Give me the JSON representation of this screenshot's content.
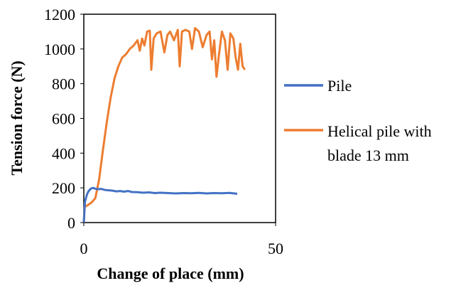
{
  "chart_data": {
    "type": "line",
    "title": "",
    "xlabel": "Change of place (mm)",
    "ylabel": "Tension force (N)",
    "xlim": [
      0,
      50
    ],
    "ylim": [
      0,
      1200
    ],
    "x_ticks": [
      "0",
      "50"
    ],
    "y_ticks": [
      "0",
      "200",
      "400",
      "600",
      "800",
      "1000",
      "1200"
    ],
    "grid": false,
    "legend_position": "right",
    "series": [
      {
        "name": "Pile",
        "color": "#4472C4",
        "points": [
          [
            0,
            0
          ],
          [
            0.3,
            120
          ],
          [
            0.8,
            160
          ],
          [
            1.2,
            180
          ],
          [
            1.8,
            195
          ],
          [
            2.4,
            200
          ],
          [
            3.0,
            195
          ],
          [
            3.6,
            192
          ],
          [
            4.5,
            194
          ],
          [
            5.5,
            188
          ],
          [
            6.5,
            186
          ],
          [
            7.5,
            184
          ],
          [
            8.5,
            180
          ],
          [
            9.5,
            182
          ],
          [
            10.5,
            178
          ],
          [
            11.5,
            182
          ],
          [
            12.5,
            176
          ],
          [
            14,
            175
          ],
          [
            15.5,
            172
          ],
          [
            17,
            174
          ],
          [
            18.5,
            170
          ],
          [
            20,
            172
          ],
          [
            22,
            170
          ],
          [
            24,
            168
          ],
          [
            26,
            170
          ],
          [
            28,
            169
          ],
          [
            30,
            171
          ],
          [
            32,
            168
          ],
          [
            34,
            170
          ],
          [
            36,
            169
          ],
          [
            38,
            171
          ],
          [
            40,
            166
          ]
        ]
      },
      {
        "name": "Helical pile with blade 13 mm",
        "color": "#ED7D31",
        "points": [
          [
            0,
            0
          ],
          [
            0.2,
            90
          ],
          [
            1.0,
            100
          ],
          [
            2.0,
            115
          ],
          [
            3.0,
            140
          ],
          [
            4.0,
            250
          ],
          [
            5.0,
            420
          ],
          [
            6.0,
            580
          ],
          [
            7.0,
            720
          ],
          [
            8.0,
            830
          ],
          [
            9.0,
            900
          ],
          [
            10.0,
            950
          ],
          [
            11.0,
            970
          ],
          [
            12.0,
            1000
          ],
          [
            13.0,
            1020
          ],
          [
            14.0,
            1050
          ],
          [
            14.6,
            990
          ],
          [
            15.2,
            1060
          ],
          [
            15.8,
            1020
          ],
          [
            16.5,
            1100
          ],
          [
            17.2,
            1105
          ],
          [
            17.6,
            880
          ],
          [
            18.2,
            1060
          ],
          [
            19.0,
            1090
          ],
          [
            20.0,
            1100
          ],
          [
            21.0,
            980
          ],
          [
            21.8,
            1080
          ],
          [
            22.5,
            1100
          ],
          [
            23.5,
            1050
          ],
          [
            24.5,
            1110
          ],
          [
            25.0,
            900
          ],
          [
            25.6,
            1100
          ],
          [
            26.5,
            1110
          ],
          [
            27.5,
            1100
          ],
          [
            28.2,
            1000
          ],
          [
            29.0,
            1120
          ],
          [
            30.0,
            1100
          ],
          [
            31.0,
            1010
          ],
          [
            32.0,
            1080
          ],
          [
            32.8,
            1100
          ],
          [
            33.4,
            940
          ],
          [
            34.0,
            1050
          ],
          [
            34.6,
            840
          ],
          [
            35.2,
            960
          ],
          [
            36.0,
            1100
          ],
          [
            36.8,
            1050
          ],
          [
            37.5,
            880
          ],
          [
            38.2,
            1090
          ],
          [
            39.0,
            1060
          ],
          [
            39.6,
            950
          ],
          [
            40.2,
            880
          ],
          [
            40.8,
            1030
          ],
          [
            41.4,
            900
          ],
          [
            42.0,
            880
          ]
        ]
      }
    ]
  }
}
